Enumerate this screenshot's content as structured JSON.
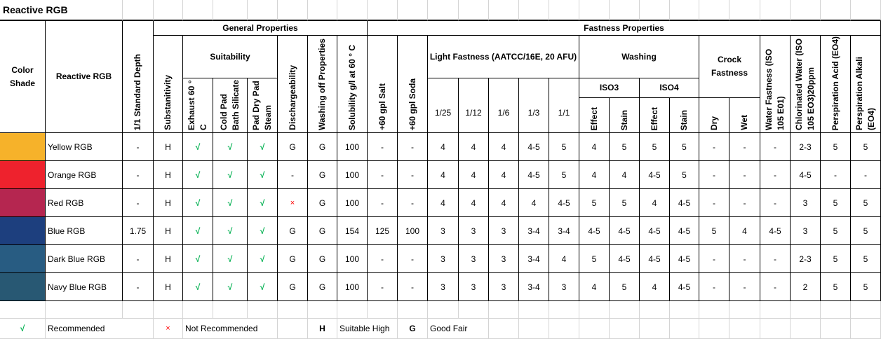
{
  "title": "Reactive RGB",
  "headers": {
    "color_shade": "Color Shade",
    "reactive_rgb": "Reactive RGB",
    "standard_depth": "1/1 Standard Depth",
    "general_properties": "General Properties",
    "fastness_properties": "Fastness Properties",
    "substantivity": "Substanitivity",
    "suitability": "Suitability",
    "exhaust": "Exhaust 60 ° C",
    "cold_pad": "Cold Pad Bath Silicate",
    "pad_dry": "Pad Dry Pad Steam",
    "dischargeability": "Dischargeability",
    "washing_off": "Washing off Properties",
    "solubility": "Solubility g/l at 60 ° C",
    "salt": "+60 gpl Salt",
    "soda": "+60 gpl Soda",
    "light_fastness": "Light Fastness (AATCC/16E, 20 AFU)",
    "light_levels": [
      "1/25",
      "1/12",
      "1/6",
      "1/3",
      "1/1"
    ],
    "washing": "Washing",
    "iso3": "ISO3",
    "iso4": "ISO4",
    "effect": "Effect",
    "stain": "Stain",
    "crock_fastness": "Crock Fastness",
    "dry": "Dry",
    "wet": "Wet",
    "water_fastness": "Water Fastness (ISO 105 E01)",
    "chlorinated_water": "Chlorinated Water (ISO 105 EO3)20ppm",
    "perspiration_acid": "Perspiration Acid (EO4)",
    "perspiration_alkali": "Perspiration Alkali (EO4)"
  },
  "rows": [
    {
      "name": "Yellow RGB",
      "color": "#f6b22a",
      "values": [
        "-",
        "H",
        "√",
        "√",
        "√",
        "G",
        "G",
        "100",
        "-",
        "-",
        "4",
        "4",
        "4",
        "4-5",
        "5",
        "4",
        "5",
        "5",
        "5",
        "-",
        "-",
        "-",
        "2-3",
        "5",
        "5"
      ]
    },
    {
      "name": "Orange RGB",
      "color": "#ee222d",
      "values": [
        "-",
        "H",
        "√",
        "√",
        "√",
        "-",
        "G",
        "100",
        "-",
        "-",
        "4",
        "4",
        "4",
        "4-5",
        "5",
        "4",
        "4",
        "4-5",
        "5",
        "-",
        "-",
        "-",
        "4-5",
        "-",
        "-"
      ]
    },
    {
      "name": "Red RGB",
      "color": "#b52650",
      "values": [
        "-",
        "H",
        "√",
        "√",
        "√",
        "×",
        "G",
        "100",
        "-",
        "-",
        "4",
        "4",
        "4",
        "4",
        "4-5",
        "5",
        "5",
        "4",
        "4-5",
        "-",
        "-",
        "-",
        "3",
        "5",
        "5"
      ]
    },
    {
      "name": "Blue RGB",
      "color": "#1d3f7e",
      "values": [
        "1.75",
        "H",
        "√",
        "√",
        "√",
        "G",
        "G",
        "154",
        "125",
        "100",
        "3",
        "3",
        "3",
        "3-4",
        "3-4",
        "4-5",
        "4-5",
        "4-5",
        "4-5",
        "5",
        "4",
        "4-5",
        "3",
        "5",
        "5"
      ]
    },
    {
      "name": "Dark Blue RGB",
      "color": "#285c82",
      "values": [
        "-",
        "H",
        "√",
        "√",
        "√",
        "G",
        "G",
        "100",
        "-",
        "-",
        "3",
        "3",
        "3",
        "3-4",
        "4",
        "5",
        "4-5",
        "4-5",
        "4-5",
        "-",
        "-",
        "-",
        "2-3",
        "5",
        "5"
      ]
    },
    {
      "name": "Navy Blue RGB",
      "color": "#285873",
      "values": [
        "-",
        "H",
        "√",
        "√",
        "√",
        "G",
        "G",
        "100",
        "-",
        "-",
        "3",
        "3",
        "3",
        "3-4",
        "3",
        "4",
        "5",
        "4",
        "4-5",
        "-",
        "-",
        "-",
        "2",
        "5",
        "5"
      ]
    }
  ],
  "legend": {
    "check_symbol": "√",
    "check_label": "Recommended",
    "cross_symbol": "×",
    "cross_label": "Not Recommended",
    "h_symbol": "H",
    "h_label": "Suitable High",
    "g_symbol": "G",
    "g_label": "Good Fair"
  },
  "colors": {
    "check": "#00b050",
    "cross": "#ff0000"
  }
}
